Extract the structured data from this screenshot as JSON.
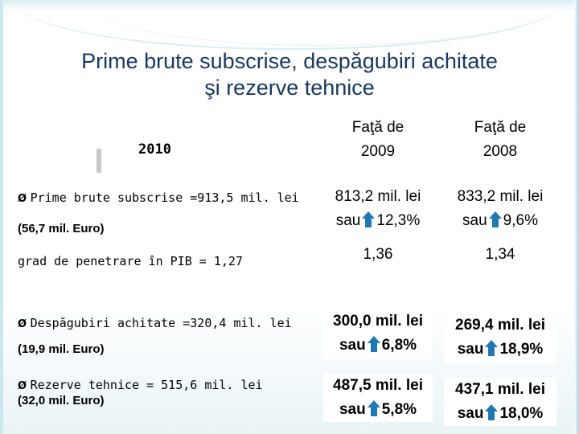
{
  "slide": {
    "title_line1": "Prime brute subscrise, despăgubiri achitate",
    "title_line2": "şi rezerve tehnice",
    "year": "2010",
    "rows": {
      "premiums": {
        "label": "Prime brute subscrise =913,5 mil. lei",
        "sub": "(56,7 mil. Euro)"
      },
      "penetration": {
        "label": "grad de penetrare în PIB = 1,27"
      },
      "claims": {
        "label": "Despăgubiri achitate =320,4 mil. lei",
        "sub": "(19,9 mil. Euro)"
      },
      "reserves": {
        "label": "Rezerve tehnice = 515,6 mil. lei",
        "sub": "(32,0 mil. Euro)"
      }
    },
    "col2009": {
      "header_line1": "Faţă de",
      "header_line2": "2009",
      "premiums_value": "813,2 mil. lei",
      "premiums_sau": "sau",
      "premiums_change": "12,3%",
      "penetration": "1,36",
      "claims_value": "300,0 mil. lei",
      "claims_sau": "sau",
      "claims_change": "6,8%",
      "reserves_value": "487,5 mil. lei",
      "reserves_sau": "sau",
      "reserves_change": "5,8%"
    },
    "col2008": {
      "header_line1": "Faţă de",
      "header_line2": "2008",
      "premiums_value": "833,2 mil. lei",
      "premiums_sau": "sau",
      "premiums_change": "9,6%",
      "penetration": "1,34",
      "claims_value": "269,4 mil. lei",
      "claims_sau": "sau",
      "claims_change": "18,9%",
      "reserves_value": "437,1 mil. lei",
      "reserves_sau": "sau",
      "reserves_change": "18,0%"
    },
    "arrow_icon": "up-arrow-icon",
    "colors": {
      "title": "#17375e",
      "arrow": "#1f77b4",
      "frame": "#a9d6e2"
    }
  }
}
